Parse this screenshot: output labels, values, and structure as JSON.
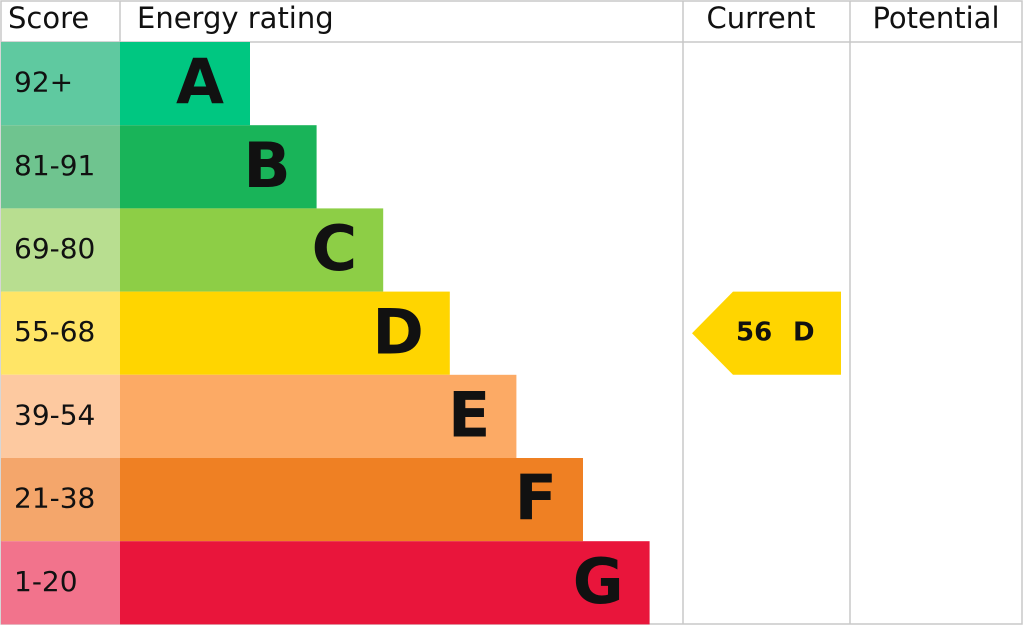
{
  "header": {
    "score": "Score",
    "rating": "Energy rating",
    "current": "Current",
    "potential": "Potential"
  },
  "bands": [
    {
      "score": "92+",
      "letter": "A",
      "color": "#00c781",
      "score_color": "#5fc9a0"
    },
    {
      "score": "81-91",
      "letter": "B",
      "color": "#19b459",
      "score_color": "#6fc48f"
    },
    {
      "score": "69-80",
      "letter": "C",
      "color": "#8dce46",
      "score_color": "#b8de90"
    },
    {
      "score": "55-68",
      "letter": "D",
      "color": "#ffd500",
      "score_color": "#ffe566"
    },
    {
      "score": "39-54",
      "letter": "E",
      "color": "#fcaa65",
      "score_color": "#fdc9a0"
    },
    {
      "score": "21-38",
      "letter": "F",
      "color": "#ef8023",
      "score_color": "#f4a66b"
    },
    {
      "score": "1-20",
      "letter": "G",
      "color": "#e9153b",
      "score_color": "#f2738c"
    }
  ],
  "current": {
    "score": 56,
    "band": "D"
  }
}
